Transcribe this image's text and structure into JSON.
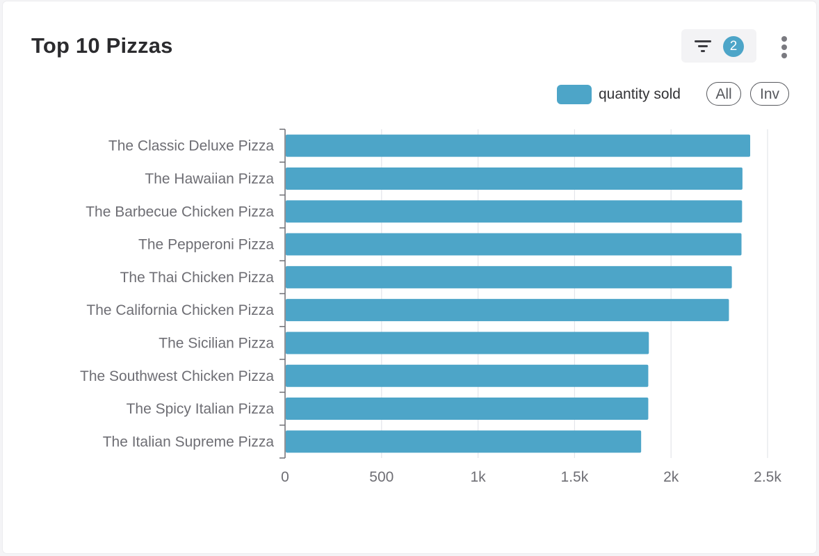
{
  "card": {
    "title": "Top 10 Pizzas",
    "filter_count": "2",
    "legend_all": "All",
    "legend_inv": "Inv"
  },
  "icons": {
    "filter": "filter-icon",
    "more": "more-vertical-icon"
  },
  "colors": {
    "bar": "#4da5c8",
    "badge": "#4da5c8"
  },
  "chart_data": {
    "type": "bar",
    "orientation": "horizontal",
    "title": "Top 10 Pizzas",
    "categories": [
      "The Classic Deluxe Pizza",
      "The Hawaiian Pizza",
      "The Barbecue Chicken Pizza",
      "The Pepperoni Pizza",
      "The Thai Chicken Pizza",
      "The California Chicken Pizza",
      "The Sicilian Pizza",
      "The Southwest Chicken Pizza",
      "The Spicy Italian Pizza",
      "The Italian Supreme Pizza"
    ],
    "series": [
      {
        "name": "quantity sold",
        "values": [
          2410,
          2370,
          2368,
          2365,
          2315,
          2300,
          1885,
          1882,
          1882,
          1845
        ]
      }
    ],
    "xlim": [
      0,
      2500
    ],
    "xticks": [
      0,
      500,
      1000,
      1500,
      2000,
      2500
    ],
    "xtick_labels": [
      "0",
      "500",
      "1k",
      "1.5k",
      "2k",
      "2.5k"
    ],
    "xlabel": "",
    "ylabel": "",
    "grid": "vertical",
    "legend": "top-right"
  }
}
